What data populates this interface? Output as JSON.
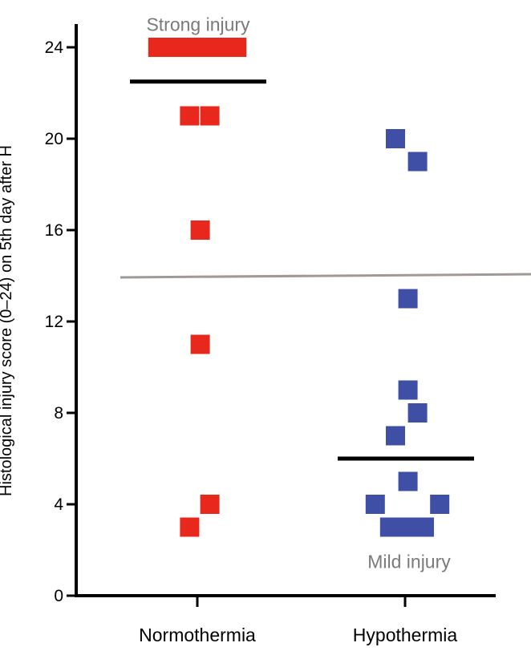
{
  "chart_data": {
    "type": "scatter",
    "ylabel": "Histological injury score (0–24) on 5th day after H",
    "xlabel": "",
    "ylim": [
      0,
      24
    ],
    "yticks": [
      0,
      4,
      8,
      12,
      16,
      20,
      24
    ],
    "categories": [
      "Normothermia",
      "Hypothermia"
    ],
    "series": [
      {
        "category": "Normothermia",
        "color": "#e8281c",
        "marker": "square",
        "points": [
          {
            "x": -0.41,
            "y": 24
          },
          {
            "x": -0.25,
            "y": 24
          },
          {
            "x": -0.08,
            "y": 24
          },
          {
            "x": 0.08,
            "y": 24
          },
          {
            "x": 0.25,
            "y": 24
          },
          {
            "x": 0.41,
            "y": 24
          },
          {
            "x": -0.08,
            "y": 21
          },
          {
            "x": 0.13,
            "y": 21
          },
          {
            "x": 0.03,
            "y": 16
          },
          {
            "x": 0.03,
            "y": 11
          },
          {
            "x": 0.13,
            "y": 4
          },
          {
            "x": -0.08,
            "y": 3
          }
        ],
        "median": 22.5
      },
      {
        "category": "Hypothermia",
        "color": "#3f4fa5",
        "marker": "square",
        "points": [
          {
            "x": -0.1,
            "y": 20
          },
          {
            "x": 0.13,
            "y": 19
          },
          {
            "x": 0.03,
            "y": 13
          },
          {
            "x": 0.03,
            "y": 9
          },
          {
            "x": 0.13,
            "y": 8
          },
          {
            "x": -0.1,
            "y": 7
          },
          {
            "x": 0.03,
            "y": 5
          },
          {
            "x": -0.31,
            "y": 4
          },
          {
            "x": 0.36,
            "y": 4
          },
          {
            "x": -0.16,
            "y": 3
          },
          {
            "x": 0.03,
            "y": 3
          },
          {
            "x": 0.2,
            "y": 3
          }
        ],
        "median": 6
      }
    ],
    "threshold": {
      "y": 14,
      "color": "#a09a96"
    },
    "annotations": [
      {
        "text": "Strong injury",
        "y": 25
      },
      {
        "text": "Mild injury",
        "y": 1.5
      }
    ]
  }
}
